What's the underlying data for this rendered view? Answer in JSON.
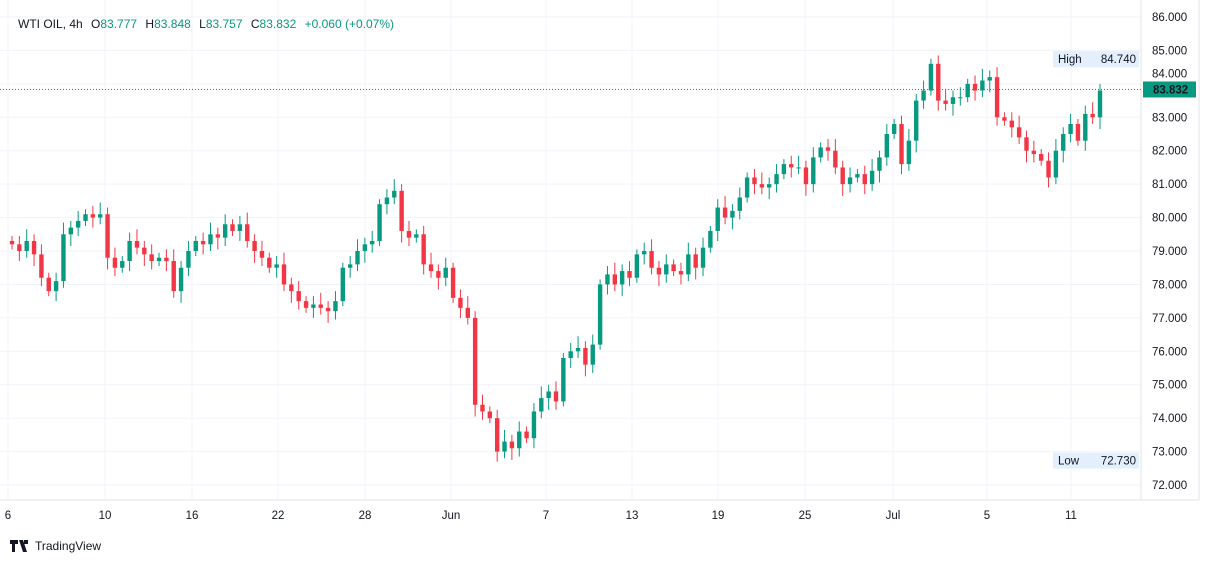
{
  "legend": {
    "symbol": "WTI OIL, 4h",
    "o_label": "O",
    "o": "83.777",
    "h_label": "H",
    "h": "83.848",
    "l_label": "L",
    "l": "83.757",
    "c_label": "C",
    "c": "83.832",
    "change": "+0.060 (+0.07%)"
  },
  "colors": {
    "up": "#089981",
    "down": "#f23645",
    "grid": "#f0f3fa",
    "text": "#131722"
  },
  "branding": "TradingView",
  "chart_data": {
    "type": "candlestick",
    "title": "WTI OIL, 4h",
    "ylim": [
      71.5,
      86.3
    ],
    "y_ticks": [
      72,
      73,
      74,
      75,
      76,
      77,
      78,
      79,
      80,
      81,
      82,
      83,
      84,
      85,
      86
    ],
    "y_tick_labels": [
      "72.000",
      "73.000",
      "74.000",
      "75.000",
      "76.000",
      "77.000",
      "78.000",
      "79.000",
      "80.000",
      "81.000",
      "82.000",
      "83.000",
      "84.000",
      "85.000",
      "86.000"
    ],
    "x_tick_labels": [
      "6",
      "10",
      "16",
      "22",
      "28",
      "Jun",
      "7",
      "13",
      "19",
      "25",
      "Jul",
      "5",
      "11"
    ],
    "closes": [
      79.2,
      79.0,
      79.3,
      78.9,
      78.2,
      77.8,
      78.1,
      79.5,
      79.7,
      79.9,
      80.1,
      80.0,
      80.1,
      78.8,
      78.5,
      78.7,
      79.3,
      79.1,
      78.9,
      78.7,
      78.8,
      78.7,
      77.8,
      78.5,
      79.0,
      79.3,
      79.2,
      79.5,
      79.4,
      79.8,
      79.6,
      79.8,
      79.3,
      79.0,
      78.8,
      78.5,
      78.6,
      78.0,
      77.8,
      77.5,
      77.3,
      77.4,
      77.3,
      77.2,
      77.5,
      78.5,
      78.6,
      79.0,
      79.2,
      79.3,
      80.4,
      80.6,
      80.8,
      79.6,
      79.4,
      79.5,
      78.6,
      78.4,
      78.2,
      78.5,
      77.6,
      77.3,
      77.0,
      74.4,
      74.2,
      74.0,
      73.0,
      73.3,
      73.1,
      73.6,
      73.4,
      74.2,
      74.6,
      74.8,
      74.5,
      75.8,
      76.0,
      76.1,
      75.6,
      76.2,
      78.0,
      78.3,
      78.0,
      78.4,
      78.2,
      78.9,
      79.0,
      78.5,
      78.3,
      78.6,
      78.4,
      78.3,
      78.9,
      78.5,
      79.1,
      79.6,
      80.3,
      80.0,
      80.2,
      80.6,
      81.2,
      81.0,
      80.9,
      81.0,
      81.3,
      81.6,
      81.5,
      81.5,
      81.0,
      81.8,
      82.1,
      82.0,
      81.5,
      81.0,
      81.2,
      81.3,
      81.0,
      81.4,
      81.8,
      82.5,
      82.8,
      81.6,
      82.3,
      83.5,
      83.8,
      84.6,
      83.5,
      83.4,
      83.6,
      83.6,
      84.0,
      83.8,
      84.1,
      84.2,
      83.0,
      82.9,
      82.7,
      82.4,
      82.0,
      81.9,
      81.7,
      81.2,
      82.0,
      82.5,
      82.8,
      82.3,
      83.1,
      83.0,
      83.8
    ],
    "last_price": "83.832",
    "high": {
      "label": "High",
      "value": "84.740"
    },
    "low": {
      "label": "Low",
      "value": "72.730"
    }
  }
}
